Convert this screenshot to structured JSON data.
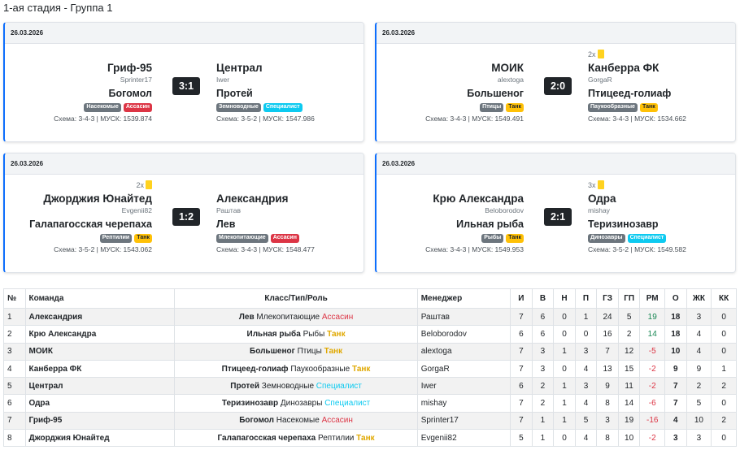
{
  "stage_title": "1-ая стадия - Группа 1",
  "matches": [
    {
      "date": "26.03.2026",
      "score": "3:1",
      "home": {
        "yc": "",
        "name": "Гриф-95",
        "manager": "Sprinter17",
        "hero": "Богомол",
        "badge1": "Насекомые",
        "badge2": "Ассасин",
        "badge2_color": "red",
        "schema": "Схема: 3-4-3 | МУСК: 1539.874"
      },
      "away": {
        "yc": "",
        "name": "Централ",
        "manager": "Iwer",
        "hero": "Протей",
        "badge1": "Земноводные",
        "badge2": "Специалист",
        "badge2_color": "cyan",
        "schema": "Схема: 3-5-2 | МУСК: 1547.986"
      }
    },
    {
      "date": "26.03.2026",
      "score": "2:0",
      "home": {
        "yc": "",
        "name": "МОИК",
        "manager": "alextoga",
        "hero": "Большеног",
        "badge1": "Птицы",
        "badge2": "Танк",
        "badge2_color": "yellow",
        "schema": "Схема: 3-4-3 | МУСК: 1549.491"
      },
      "away": {
        "yc": "2x",
        "name": "Канберра ФК",
        "manager": "GorgaR",
        "hero": "Птицеед-голиаф",
        "badge1": "Паукообразные",
        "badge2": "Танк",
        "badge2_color": "yellow",
        "schema": "Схема: 3-4-3 | МУСК: 1534.662"
      }
    },
    {
      "date": "26.03.2026",
      "score": "1:2",
      "home": {
        "yc": "2x",
        "name": "Джорджия Юнайтед",
        "manager": "Evgenii82",
        "hero": "Галапагосская черепаха",
        "badge1": "Рептилии",
        "badge2": "Танк",
        "badge2_color": "yellow",
        "schema": "Схема: 3-5-2 | МУСК: 1543.062"
      },
      "away": {
        "yc": "",
        "name": "Александрия",
        "manager": "Раштав",
        "hero": "Лев",
        "badge1": "Млекопитающие",
        "badge2": "Ассасин",
        "badge2_color": "red",
        "schema": "Схема: 3-4-3 | МУСК: 1548.477"
      }
    },
    {
      "date": "26.03.2026",
      "score": "2:1",
      "home": {
        "yc": "",
        "name": "Крю Александра",
        "manager": "Beloborodov",
        "hero": "Ильная рыба",
        "badge1": "Рыбы",
        "badge2": "Танк",
        "badge2_color": "yellow",
        "schema": "Схема: 3-4-3 | МУСК: 1549.953"
      },
      "away": {
        "yc": "3x",
        "name": "Одра",
        "manager": "mishay",
        "hero": "Теризинозавр",
        "badge1": "Динозавры",
        "badge2": "Специалист",
        "badge2_color": "cyan",
        "schema": "Схема: 3-5-2 | МУСК: 1549.582"
      }
    }
  ],
  "table": {
    "headers": [
      "№",
      "Команда",
      "Класс/Тип/Роль",
      "Менеджер",
      "И",
      "В",
      "Н",
      "П",
      "ГЗ",
      "ГП",
      "РМ",
      "О",
      "ЖК",
      "КК"
    ],
    "rows": [
      {
        "n": "1",
        "team": "Александрия",
        "hero": "Лев",
        "type": "Млекопитающие",
        "role": "Ассасин",
        "role_color": "red",
        "mgr": "Раштав",
        "g": "7",
        "w": "6",
        "d": "0",
        "l": "1",
        "gf": "24",
        "ga": "5",
        "gd": "19",
        "pts": "18",
        "yc": "3",
        "rc": "0"
      },
      {
        "n": "2",
        "team": "Крю Александра",
        "hero": "Ильная рыба",
        "type": "Рыбы",
        "role": "Танк",
        "role_color": "yellow",
        "mgr": "Beloborodov",
        "g": "6",
        "w": "6",
        "d": "0",
        "l": "0",
        "gf": "16",
        "ga": "2",
        "gd": "14",
        "pts": "18",
        "yc": "4",
        "rc": "0"
      },
      {
        "n": "3",
        "team": "МОИК",
        "hero": "Большеног",
        "type": "Птицы",
        "role": "Танк",
        "role_color": "yellow",
        "mgr": "alextoga",
        "g": "7",
        "w": "3",
        "d": "1",
        "l": "3",
        "gf": "7",
        "ga": "12",
        "gd": "-5",
        "pts": "10",
        "yc": "4",
        "rc": "0"
      },
      {
        "n": "4",
        "team": "Канберра ФК",
        "hero": "Птицеед-голиаф",
        "type": "Паукообразные",
        "role": "Танк",
        "role_color": "yellow",
        "mgr": "GorgaR",
        "g": "7",
        "w": "3",
        "d": "0",
        "l": "4",
        "gf": "13",
        "ga": "15",
        "gd": "-2",
        "pts": "9",
        "yc": "9",
        "rc": "1"
      },
      {
        "n": "5",
        "team": "Централ",
        "hero": "Протей",
        "type": "Земноводные",
        "role": "Специалист",
        "role_color": "cyan",
        "mgr": "Iwer",
        "g": "6",
        "w": "2",
        "d": "1",
        "l": "3",
        "gf": "9",
        "ga": "11",
        "gd": "-2",
        "pts": "7",
        "yc": "2",
        "rc": "2"
      },
      {
        "n": "6",
        "team": "Одра",
        "hero": "Теризинозавр",
        "type": "Динозавры",
        "role": "Специалист",
        "role_color": "cyan",
        "mgr": "mishay",
        "g": "7",
        "w": "2",
        "d": "1",
        "l": "4",
        "gf": "8",
        "ga": "14",
        "gd": "-6",
        "pts": "7",
        "yc": "5",
        "rc": "0"
      },
      {
        "n": "7",
        "team": "Гриф-95",
        "hero": "Богомол",
        "type": "Насекомые",
        "role": "Ассасин",
        "role_color": "red",
        "mgr": "Sprinter17",
        "g": "7",
        "w": "1",
        "d": "1",
        "l": "5",
        "gf": "3",
        "ga": "19",
        "gd": "-16",
        "pts": "4",
        "yc": "10",
        "rc": "2"
      },
      {
        "n": "8",
        "team": "Джорджия Юнайтед",
        "hero": "Галапагосская черепаха",
        "type": "Рептилии",
        "role": "Танк",
        "role_color": "yellow",
        "mgr": "Evgenii82",
        "g": "5",
        "w": "1",
        "d": "0",
        "l": "4",
        "gf": "8",
        "ga": "10",
        "gd": "-2",
        "pts": "3",
        "yc": "3",
        "rc": "0"
      }
    ]
  }
}
